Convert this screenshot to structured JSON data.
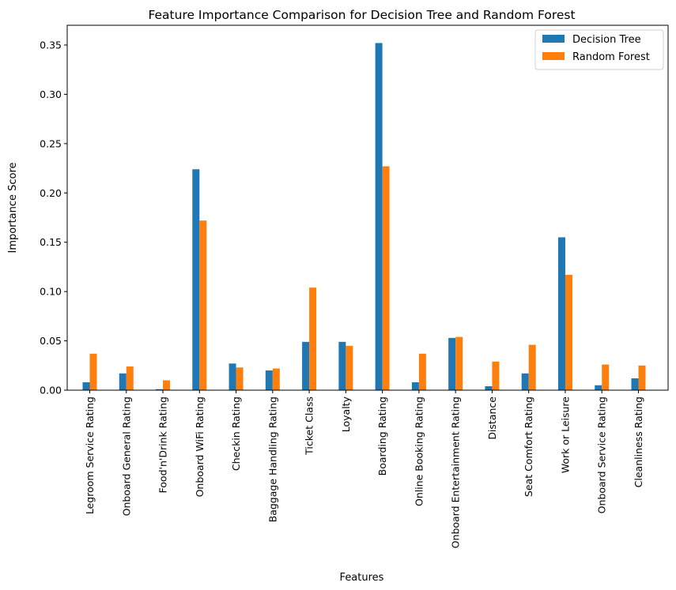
{
  "chart_data": {
    "type": "bar",
    "title": "Feature Importance Comparison for Decision Tree and Random Forest",
    "xlabel": "Features",
    "ylabel": "Importance Score",
    "ylim": [
      0,
      0.37
    ],
    "yticks": [
      "0.00",
      "0.05",
      "0.10",
      "0.15",
      "0.20",
      "0.25",
      "0.30",
      "0.35"
    ],
    "grid": false,
    "legend_position": "top-right",
    "categories": [
      "Legroom Service Rating",
      "Onboard General Rating",
      "Food'n'Drink Rating",
      "Onboard WiFi Rating",
      "Checkin Rating",
      "Baggage Handling Rating",
      "Ticket Class",
      "Loyalty",
      "Boarding Rating",
      "Online Booking Rating",
      "Onboard Entertainment Rating",
      "Distance",
      "Seat Comfort Rating",
      "Work or Leisure",
      "Onboard Service Rating",
      "Cleanliness Rating"
    ],
    "series": [
      {
        "name": "Decision Tree",
        "color": "#1f77b4",
        "values": [
          0.008,
          0.017,
          0.001,
          0.224,
          0.027,
          0.02,
          0.049,
          0.049,
          0.352,
          0.008,
          0.053,
          0.004,
          0.017,
          0.155,
          0.005,
          0.012
        ]
      },
      {
        "name": "Random Forest",
        "color": "#ff7f0e",
        "values": [
          0.037,
          0.024,
          0.01,
          0.172,
          0.023,
          0.022,
          0.104,
          0.045,
          0.227,
          0.037,
          0.054,
          0.029,
          0.046,
          0.117,
          0.026,
          0.025
        ]
      }
    ]
  }
}
